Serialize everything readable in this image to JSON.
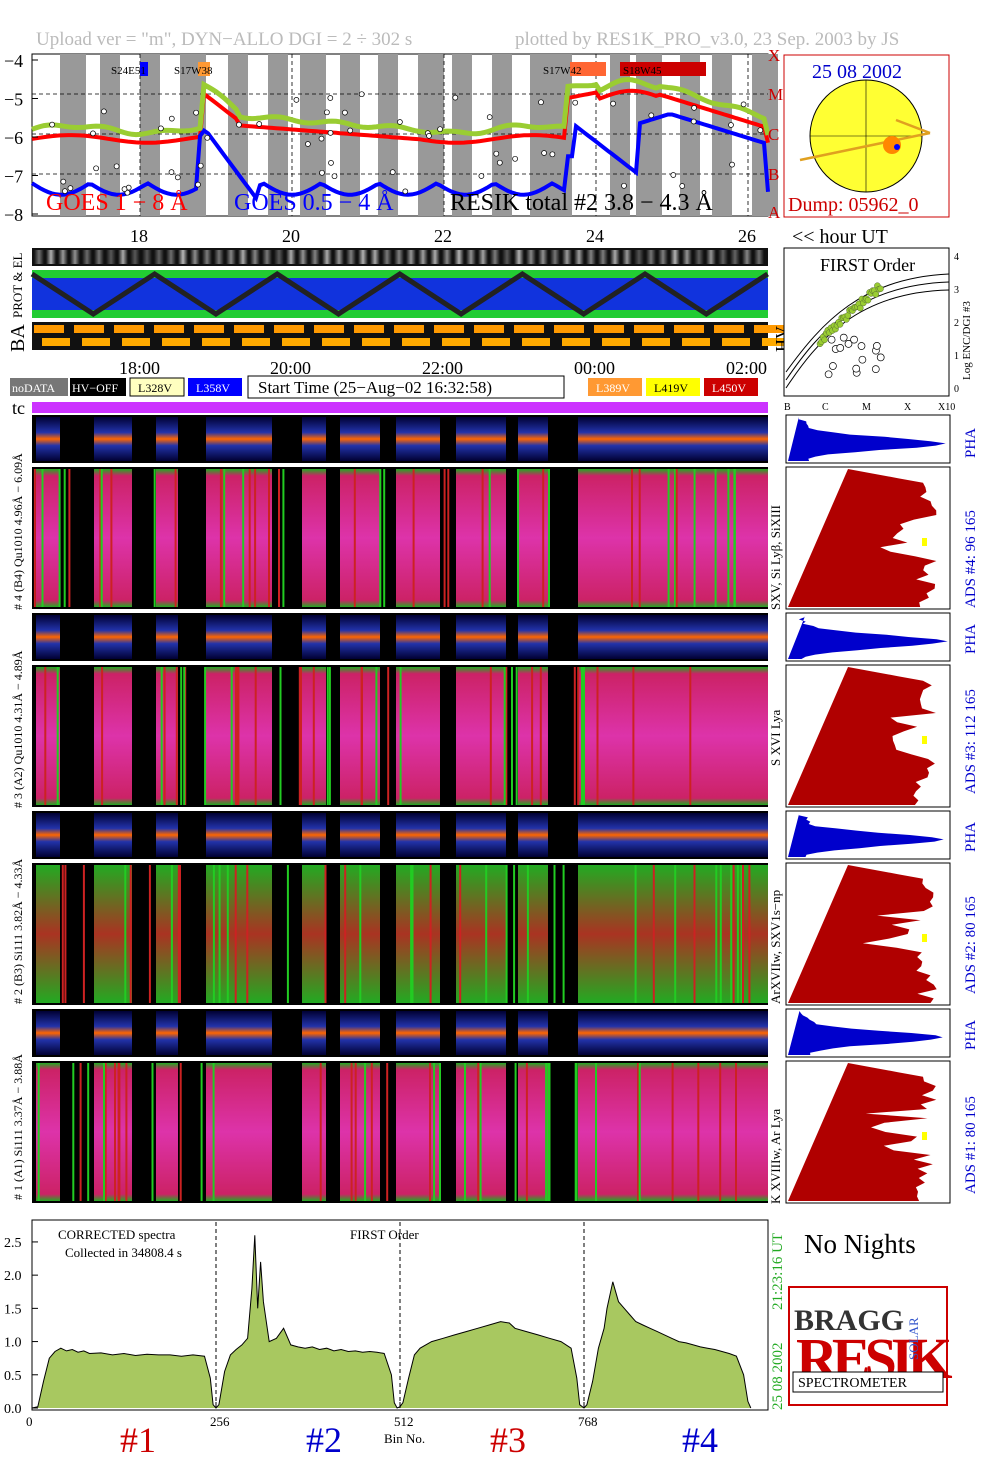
{
  "header": {
    "left": "Upload ver = \"m\", DYN−ALLO DGI =   2 ÷ 302 s",
    "right": "plotted by RES1K_PRO_v3.0, 23 Sep. 2003 by JS"
  },
  "colors": {
    "goes18": "#ff0000",
    "goes054": "#0000ff",
    "resik": "#9acd32",
    "hv328": "#ffffc0",
    "hv358": "#0000ff",
    "hv389": "#ff9933",
    "hv419": "#ffff00",
    "hv450": "#cc0000",
    "tc": "#cc33ff",
    "ads_fill": "#b00000",
    "pha_fill": "#0000cc",
    "spectrum_fill": "#a8c860"
  },
  "top_panel": {
    "goes_1_8": "GOES 1 − 8 Å",
    "goes_05_4": "GOES 0.5 − 4 Å",
    "resik_total": "RESIK total #2  3.8 − 4.3 Å",
    "flare_class_labels": [
      "X",
      "M",
      "C",
      "B",
      "A"
    ],
    "flare_locations": [
      "S24E51",
      "S17W38",
      "S17W42",
      "S18W45"
    ]
  },
  "sun_panel": {
    "date": "25 08 2002",
    "dump": "Dump: 05962_0"
  },
  "hour_axis_label": "<< hour UT",
  "strip_labels": {
    "prot_el": "PROT & EL",
    "ba": "BA",
    "hv": "HV"
  },
  "first_order_panel": {
    "title": "FIRST Order",
    "ylabel": "Log ENC/DGI #3",
    "x_ticks": [
      "B",
      "C",
      "M",
      "X",
      "X10"
    ],
    "y_ticks": [
      "0",
      "1",
      "2",
      "3",
      "4"
    ]
  },
  "time_axis_ticks": [
    "18:00",
    "20:00",
    "22:00",
    "00:00",
    "02:00"
  ],
  "legend": {
    "nodata": "noDATA",
    "hvoff": "HV−OFF",
    "v328": "L328V",
    "v358": "L358V",
    "start_time": "Start Time (25−Aug−02 16:32:58)",
    "v389": "L389V",
    "v419": "L419V",
    "v450": "L450V",
    "tc": "tc"
  },
  "channels": [
    {
      "left": "# 4 (B4) Qu1010 4.96Å − 6.09Å",
      "ions": "SXV, Si Lyβ, SiXIII",
      "ads": "ADS #4:   96 165",
      "pha": "PHA"
    },
    {
      "left": "# 3 (A2) Qu1010 4.31Å − 4.89Å",
      "ions": "S XVI Lya",
      "ads": "ADS #3:   112 165",
      "pha": "PHA"
    },
    {
      "left": "# 2 (B3) Si111 3.82Å − 4.33Å",
      "ions": "ArXVIIw, SXV1s−np",
      "ads": "ADS #2:   80 165",
      "pha": "PHA"
    },
    {
      "left": "# 1 (A1) Si111 3.37Å − 3.88Å",
      "ions": "K XVIIIw, Ar Lya",
      "ads": "ADS #1:   80 165",
      "pha": "PHA"
    }
  ],
  "spectrum": {
    "corrected": "CORRECTED spectra",
    "collected": "Collected in 34808.4 s",
    "order": "FIRST Order",
    "x_label": "Bin No.",
    "x_ticks": [
      "0",
      "256",
      "512",
      "768"
    ],
    "y_ticks": [
      "0.0",
      "0.5",
      "1.0",
      "1.5",
      "2.0",
      "2.5"
    ],
    "date_label": "25 08 2002",
    "time_label": "21:23:16 UT",
    "channel_labels": [
      "#1",
      "#2",
      "#3",
      "#4"
    ]
  },
  "no_nights": "No Nights",
  "logo": {
    "bragg": "BRAGG",
    "resik": "RESIK",
    "solar": "SOLAR",
    "spectrometer": "SPECTROMETER"
  },
  "chart_data": {
    "type": "line",
    "title": "",
    "xlabel": "Bin No.",
    "ylabel": "",
    "xlim": [
      0,
      1024
    ],
    "ylim": [
      0,
      2.8
    ],
    "x_ticks": [
      0,
      256,
      512,
      768
    ],
    "dividers": [
      256,
      512,
      768
    ],
    "series": [
      {
        "x": [
          0,
          8,
          16,
          24,
          32,
          40,
          48,
          56,
          64,
          72,
          80,
          96,
          112,
          128,
          144,
          160,
          176,
          192,
          208,
          224,
          240,
          248,
          252,
          256,
          260,
          268,
          276,
          284,
          292,
          300,
          306,
          310,
          314,
          318,
          322,
          330,
          340,
          350,
          360,
          370,
          380,
          390,
          400,
          410,
          420,
          430,
          440,
          450,
          460,
          470,
          480,
          490,
          500,
          504,
          508,
          512,
          516,
          524,
          532,
          540,
          556,
          572,
          588,
          604,
          620,
          636,
          652,
          664,
          672,
          688,
          704,
          720,
          736,
          750,
          758,
          762,
          768,
          772,
          780,
          788,
          796,
          800,
          808,
          816,
          824,
          832,
          840,
          850,
          860,
          870,
          880,
          890,
          900,
          910,
          920,
          930,
          940,
          950,
          960,
          970,
          980,
          990,
          996,
          1000
        ],
        "y": [
          0.0,
          0.02,
          0.4,
          0.75,
          0.85,
          0.9,
          0.86,
          0.88,
          0.84,
          0.86,
          0.82,
          0.83,
          0.8,
          0.82,
          0.79,
          0.81,
          0.8,
          0.8,
          0.78,
          0.8,
          0.78,
          0.45,
          0.05,
          0.0,
          0.05,
          0.55,
          0.8,
          0.88,
          0.95,
          1.05,
          1.8,
          2.6,
          1.5,
          2.2,
          1.6,
          1.0,
          1.05,
          1.2,
          0.95,
          0.92,
          0.9,
          0.92,
          0.88,
          0.9,
          0.86,
          0.88,
          0.85,
          0.86,
          0.84,
          0.85,
          0.84,
          0.82,
          0.5,
          0.08,
          0.0,
          0.02,
          0.08,
          0.45,
          0.8,
          0.9,
          1.0,
          1.05,
          1.1,
          1.15,
          1.2,
          1.25,
          1.3,
          1.28,
          1.2,
          1.15,
          1.1,
          1.05,
          1.0,
          0.9,
          0.45,
          0.05,
          0.0,
          0.05,
          0.4,
          0.9,
          1.2,
          1.5,
          1.9,
          1.6,
          1.5,
          1.4,
          1.3,
          1.25,
          1.2,
          1.15,
          1.1,
          1.05,
          1.0,
          0.98,
          0.95,
          0.92,
          0.9,
          0.88,
          0.85,
          0.82,
          0.78,
          0.5,
          0.1,
          0.0
        ]
      }
    ]
  }
}
